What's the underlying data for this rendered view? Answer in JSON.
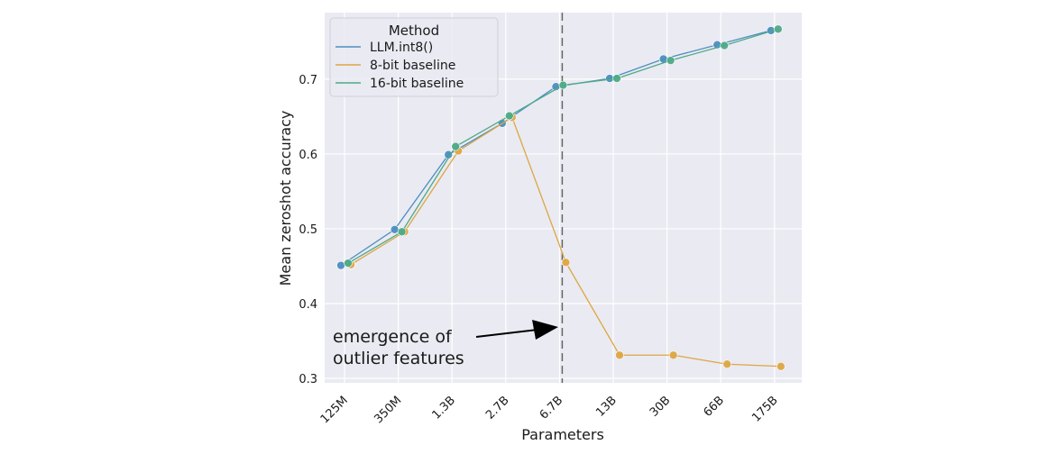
{
  "chart_data": {
    "type": "line",
    "xlabel": "Parameters",
    "ylabel": "Mean zeroshot accuracy",
    "categories": [
      "125M",
      "350M",
      "1.3B",
      "2.7B",
      "6.7B",
      "13B",
      "30B",
      "66B",
      "175B"
    ],
    "ylim": [
      0.294,
      0.789
    ],
    "yticks": [
      0.3,
      0.4,
      0.5,
      0.6,
      0.7
    ],
    "grid": true,
    "legend": {
      "title": "Method",
      "placement": "top-left"
    },
    "series": [
      {
        "name": "LLM.int8()",
        "color": "#4c8ec0",
        "values": [
          0.451,
          0.499,
          0.599,
          0.641,
          0.69,
          0.701,
          0.727,
          0.746,
          0.765
        ]
      },
      {
        "name": "8-bit baseline",
        "color": "#dda643",
        "values": [
          0.452,
          0.496,
          0.604,
          0.649,
          0.455,
          0.331,
          0.331,
          0.319,
          0.316
        ]
      },
      {
        "name": "16-bit baseline",
        "color": "#4daa86",
        "values": [
          0.454,
          0.496,
          0.61,
          0.651,
          0.692,
          0.701,
          0.725,
          0.745,
          0.767
        ]
      }
    ],
    "vline": {
      "category": "6.7B",
      "style": "dashed"
    },
    "annotation": {
      "text_line1": "emergence of",
      "text_line2": "outlier features"
    }
  }
}
